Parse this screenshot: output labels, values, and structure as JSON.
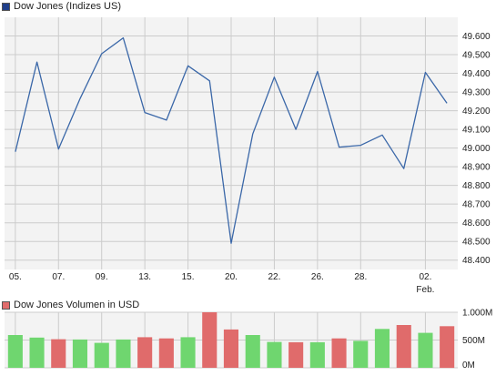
{
  "colors": {
    "price_line": "#3a67a8",
    "price_swatch": "#1f3f8a",
    "volume_up": "#6fd66f",
    "volume_down": "#e06b6b",
    "grid": "#cccccc",
    "plot_background": "#f3f3f3"
  },
  "chart_data": [
    {
      "type": "line",
      "legend": "Dow Jones (Indizes US)",
      "legend_position": "top-left",
      "grid": true,
      "ylim": [
        48350,
        49700
      ],
      "y_ticks": [
        "49.600",
        "49.500",
        "49.400",
        "49.300",
        "49.200",
        "49.100",
        "49.000",
        "48.900",
        "48.800",
        "48.700",
        "48.600",
        "48.500",
        "48.400"
      ],
      "y_tick_values": [
        49600,
        49500,
        49400,
        49300,
        49200,
        49100,
        49000,
        48900,
        48800,
        48700,
        48600,
        48500,
        48400
      ],
      "x_ticks": [
        "05.",
        "07.",
        "09.",
        "13.",
        "15.",
        "20.",
        "22.",
        "26.",
        "28.",
        "02."
      ],
      "x_tick_index": [
        0,
        2,
        4,
        6,
        8,
        10,
        12,
        14,
        16,
        19
      ],
      "x_sublabel": "Feb.",
      "x_sublabel_index": 19,
      "values": [
        48980,
        49460,
        48995,
        49265,
        49505,
        49590,
        49190,
        49150,
        49440,
        49360,
        48490,
        49075,
        49380,
        49100,
        49410,
        49005,
        49015,
        49070,
        48890,
        49405,
        49240
      ]
    },
    {
      "type": "bar",
      "legend": "Dow Jones Volumen in USD",
      "legend_position": "top-left",
      "grid": true,
      "ylim": [
        0,
        1000
      ],
      "y_ticks": [
        "1.000M",
        "500M",
        "0M"
      ],
      "y_tick_values": [
        1000,
        500,
        0
      ],
      "values": [
        590,
        545,
        515,
        510,
        450,
        510,
        550,
        530,
        550,
        1010,
        690,
        590,
        465,
        460,
        460,
        530,
        485,
        700,
        770,
        630,
        750
      ],
      "direction": [
        "up",
        "up",
        "down",
        "up",
        "up",
        "up",
        "down",
        "down",
        "up",
        "down",
        "down",
        "up",
        "up",
        "down",
        "up",
        "down",
        "up",
        "up",
        "down",
        "up",
        "down"
      ]
    }
  ]
}
